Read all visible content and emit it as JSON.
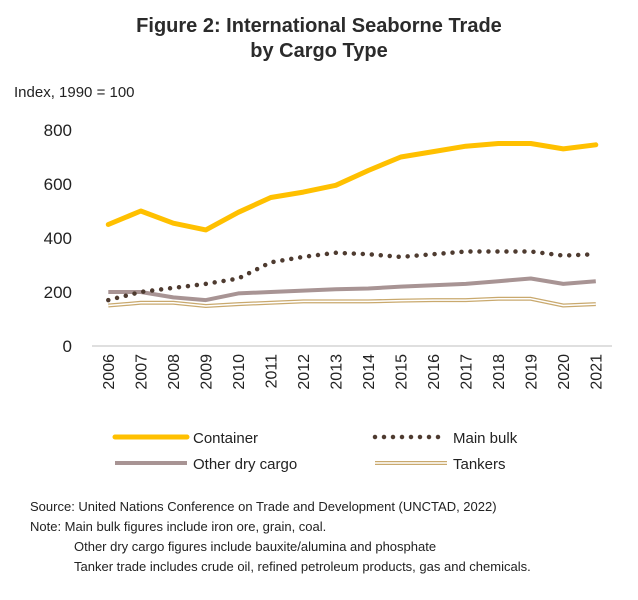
{
  "title_line1": "Figure 2:  International Seaborne Trade",
  "title_line2": "by Cargo Type",
  "unit_label": "Index, 1990 = 100",
  "chart_data": {
    "type": "line",
    "categories": [
      "2006",
      "2007",
      "2008",
      "2009",
      "2010",
      "2011",
      "2012",
      "2013",
      "2014",
      "2015",
      "2016",
      "2017",
      "2018",
      "2019",
      "2020",
      "2021"
    ],
    "ylim": [
      0,
      800
    ],
    "yticks": [
      0,
      200,
      400,
      600,
      800
    ],
    "grid": false,
    "legend_position": "bottom",
    "series": [
      {
        "name": "Container",
        "style": "solid-thick",
        "color": "#FFC000",
        "values": [
          450,
          500,
          455,
          430,
          495,
          550,
          570,
          595,
          650,
          700,
          720,
          740,
          750,
          750,
          730,
          745
        ]
      },
      {
        "name": "Main bulk",
        "style": "dotted",
        "color": "#4E3B30",
        "values": [
          170,
          200,
          215,
          230,
          250,
          310,
          330,
          345,
          340,
          330,
          340,
          350,
          350,
          350,
          335,
          340
        ]
      },
      {
        "name": "Other dry cargo",
        "style": "solid",
        "color": "#A89494",
        "values": [
          200,
          200,
          180,
          170,
          195,
          200,
          205,
          210,
          213,
          220,
          225,
          230,
          240,
          250,
          230,
          240
        ]
      },
      {
        "name": "Tankers",
        "style": "double",
        "color": "#C9A96E",
        "values": [
          150,
          160,
          160,
          148,
          155,
          160,
          165,
          165,
          165,
          168,
          170,
          170,
          175,
          175,
          150,
          155
        ]
      }
    ]
  },
  "source_line": "Source: United Nations Conference on Trade and Development (UNCTAD, 2022)",
  "notes": [
    "Note:  Main bulk figures include iron ore, grain, coal.",
    "Other dry cargo figures include bauxite/alumina and phosphate",
    "Tanker trade includes crude oil, refined petroleum products, gas and chemicals."
  ]
}
